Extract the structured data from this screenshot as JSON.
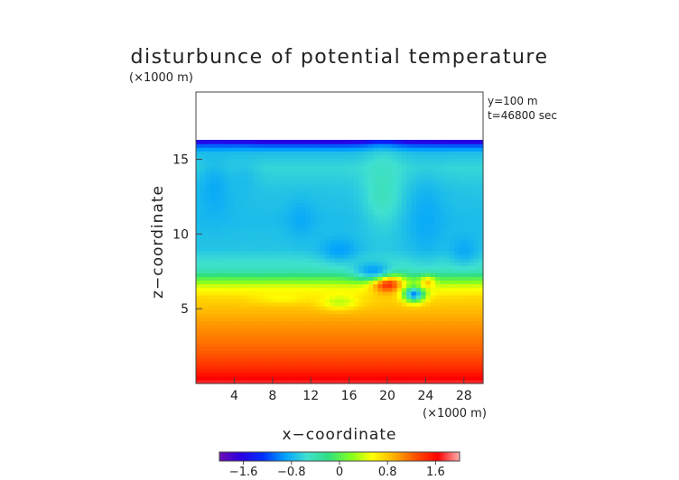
{
  "chart_data": {
    "type": "heatmap",
    "title": "disturbunce of potential temperature",
    "z_unit_label": "(×1000 m)",
    "x_unit_label": "(×1000 m)",
    "xlabel": "x−coordinate",
    "ylabel": "z−coordinate",
    "annotation_y": "y=100 m",
    "annotation_t": "t=46800 sec",
    "xlim": [
      0,
      30
    ],
    "ylim": [
      0,
      19.5
    ],
    "x_ticks": [
      {
        "value": 4,
        "label": "4"
      },
      {
        "value": 8,
        "label": "8"
      },
      {
        "value": 12,
        "label": "12"
      },
      {
        "value": 16,
        "label": "16"
      },
      {
        "value": 20,
        "label": "20"
      },
      {
        "value": 24,
        "label": "24"
      },
      {
        "value": 28,
        "label": "28"
      }
    ],
    "y_ticks": [
      {
        "value": 5,
        "label": "5"
      },
      {
        "value": 10,
        "label": "10"
      },
      {
        "value": 15,
        "label": "15"
      }
    ],
    "field_top_z": 16.3,
    "colorbar": {
      "min": -2.0,
      "max": 2.0,
      "ticks": [
        {
          "value": -1.6,
          "label": "−1.6"
        },
        {
          "value": -0.8,
          "label": "−0.8"
        },
        {
          "value": 0,
          "label": "0"
        },
        {
          "value": 0.8,
          "label": "0.8"
        },
        {
          "value": 1.6,
          "label": "1.6"
        }
      ],
      "colors": [
        "#6a0db0",
        "#2a00e0",
        "#0030ff",
        "#00a0ff",
        "#40e0d0",
        "#30e080",
        "#80ff20",
        "#ffff00",
        "#ffb000",
        "#ff5000",
        "#ff0000",
        "#ffb0b0"
      ]
    },
    "profile": [
      {
        "z": 0.0,
        "v": 1.75
      },
      {
        "z": 1.0,
        "v": 1.45
      },
      {
        "z": 2.0,
        "v": 1.25
      },
      {
        "z": 3.0,
        "v": 1.12
      },
      {
        "z": 4.0,
        "v": 1.0
      },
      {
        "z": 5.0,
        "v": 0.85
      },
      {
        "z": 5.8,
        "v": 0.72
      },
      {
        "z": 6.5,
        "v": 0.45
      },
      {
        "z": 7.0,
        "v": 0.05
      },
      {
        "z": 7.6,
        "v": -0.45
      },
      {
        "z": 9.0,
        "v": -0.7
      },
      {
        "z": 11.0,
        "v": -0.75
      },
      {
        "z": 13.0,
        "v": -0.7
      },
      {
        "z": 14.5,
        "v": -0.6
      },
      {
        "z": 15.5,
        "v": -0.75
      },
      {
        "z": 16.0,
        "v": -1.2
      },
      {
        "z": 16.3,
        "v": -1.9
      }
    ],
    "features": [
      {
        "x": 20.0,
        "z": 6.7,
        "v": 1.55,
        "rx": 1.6,
        "rz": 0.6
      },
      {
        "x": 22.8,
        "z": 6.0,
        "v": -1.0,
        "rx": 1.1,
        "rz": 0.5
      },
      {
        "x": 24.2,
        "z": 6.8,
        "v": 0.9,
        "rx": 0.8,
        "rz": 0.4
      },
      {
        "x": 18.5,
        "z": 7.6,
        "v": -0.9,
        "rx": 2.0,
        "rz": 0.6
      },
      {
        "x": 2.0,
        "z": 13.0,
        "v": -0.85,
        "rx": 2.0,
        "rz": 2.0
      },
      {
        "x": 5.0,
        "z": 13.5,
        "v": -0.75,
        "rx": 1.5,
        "rz": 1.5
      },
      {
        "x": 11.0,
        "z": 11.0,
        "v": -0.85,
        "rx": 1.5,
        "rz": 1.2
      },
      {
        "x": 15.0,
        "z": 9.0,
        "v": -0.9,
        "rx": 2.0,
        "rz": 0.8
      },
      {
        "x": 24.0,
        "z": 11.0,
        "v": -0.85,
        "rx": 2.0,
        "rz": 2.5
      },
      {
        "x": 28.0,
        "z": 9.0,
        "v": -0.85,
        "rx": 1.5,
        "rz": 1.0
      },
      {
        "x": 19.5,
        "z": 13.0,
        "v": -0.45,
        "rx": 2.0,
        "rz": 2.5
      },
      {
        "x": 15.0,
        "z": 5.5,
        "v": 0.35,
        "rx": 2.0,
        "rz": 0.5
      },
      {
        "x": 9.0,
        "z": 5.8,
        "v": 0.55,
        "rx": 3.0,
        "rz": 0.4
      }
    ]
  }
}
